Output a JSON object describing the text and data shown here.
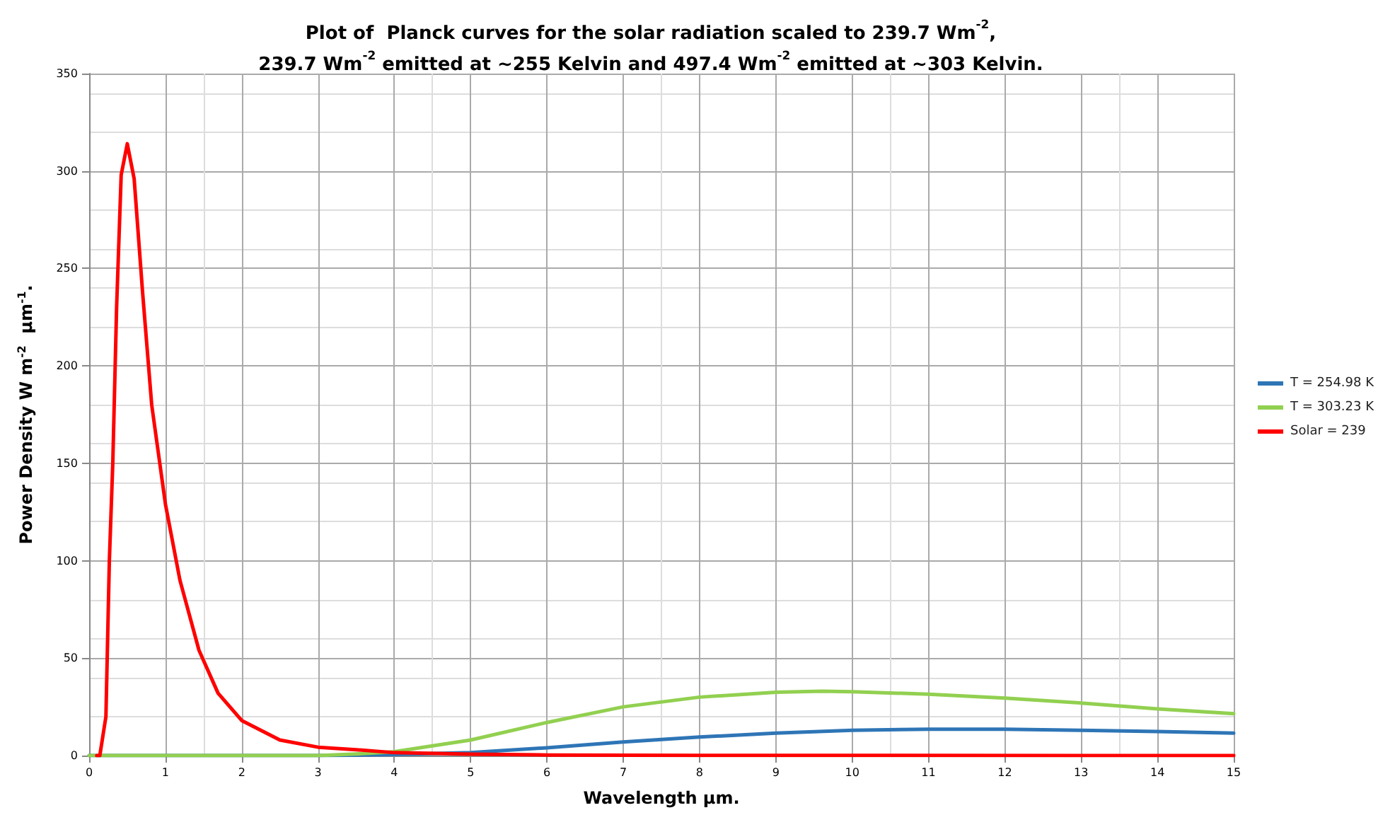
{
  "chart_data": {
    "type": "line",
    "title": "Plot of  Planck curves for the solar radiation scaled to 239.7 Wm$^{-2}$,\n239.7 Wm$^{-2}$ emitted at ~255 Kelvin and 497.4 Wm$^{-2}$ emitted at ~303 Kelvin.",
    "xlabel": "Wavelength µm.",
    "ylabel": "Power Density W m$^{-2}$  µm$^{-1}$.",
    "xlim": [
      0,
      15
    ],
    "xticks": [
      0,
      1,
      2,
      3,
      4,
      5,
      6,
      7,
      8,
      9,
      10,
      11,
      12,
      13,
      14,
      15
    ],
    "ylim": [
      0,
      350
    ],
    "yticks": [
      0,
      50,
      100,
      150,
      200,
      250,
      300,
      350
    ],
    "grid": true,
    "legend": "right",
    "marker": "none",
    "line_style": "solid",
    "series": [
      {
        "name": "T = 254.98 K",
        "color": "#2e75b6",
        "x": [
          0,
          3,
          4,
          5,
          6,
          7,
          8,
          9,
          10,
          11,
          12,
          13,
          14,
          15
        ],
        "values": [
          0,
          0,
          0.5,
          1.5,
          4,
          7,
          9.5,
          11.5,
          13,
          13.5,
          13.5,
          13,
          12.3,
          11.5
        ]
      },
      {
        "name": "T = 303.23 K",
        "color": "#92d050",
        "x": [
          0,
          3,
          3.5,
          4,
          5,
          6,
          7,
          8,
          9,
          9.6,
          10,
          11,
          12,
          13,
          14,
          15
        ],
        "values": [
          0,
          0,
          0.8,
          2,
          8,
          17,
          25,
          30,
          32.5,
          33,
          32.8,
          31.5,
          29.5,
          27,
          24,
          21.5
        ]
      },
      {
        "name": "Solar = 239",
        "color": "#ff0000",
        "x": [
          0.1,
          0.14,
          0.22,
          0.265,
          0.31,
          0.36,
          0.42,
          0.5,
          0.59,
          0.7,
          0.82,
          1,
          1.19,
          1.44,
          1.69,
          2,
          2.5,
          3,
          3.5,
          4,
          5,
          6,
          8,
          15
        ],
        "values": [
          0,
          0,
          20,
          100,
          150,
          230,
          298,
          314,
          296,
          238,
          180,
          129,
          90,
          54,
          32,
          18,
          8,
          4.3,
          3,
          1.5,
          0.7,
          0.3,
          0.1,
          0
        ]
      }
    ]
  }
}
